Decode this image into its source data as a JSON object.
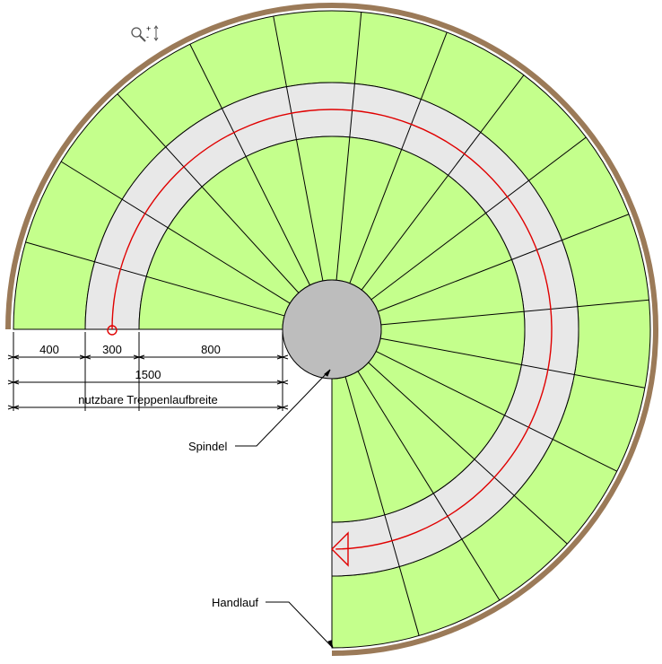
{
  "colors": {
    "tread": "#c4ff8c",
    "walkline_band": "#e8e8e8",
    "spindle": "#bdbdbd",
    "handrail": "#9b7a58",
    "walkline": "#e00000",
    "lines": "#000000"
  },
  "stair": {
    "tread_count": 17,
    "start_angle_deg": 180,
    "sweep_deg": 270,
    "direction": "clockwise"
  },
  "dimensions": {
    "segments": [
      {
        "key": "dim_400",
        "label": "400"
      },
      {
        "key": "dim_300",
        "label": "300"
      },
      {
        "key": "dim_800",
        "label": "800"
      }
    ],
    "total_label": "1500",
    "usable_width_label": "nutzbare Treppenlaufbreite"
  },
  "labels": {
    "spindle": "Spindel",
    "handrail": "Handlauf"
  },
  "toolbar": {
    "zoom_icon": "zoom-extents-icon"
  }
}
